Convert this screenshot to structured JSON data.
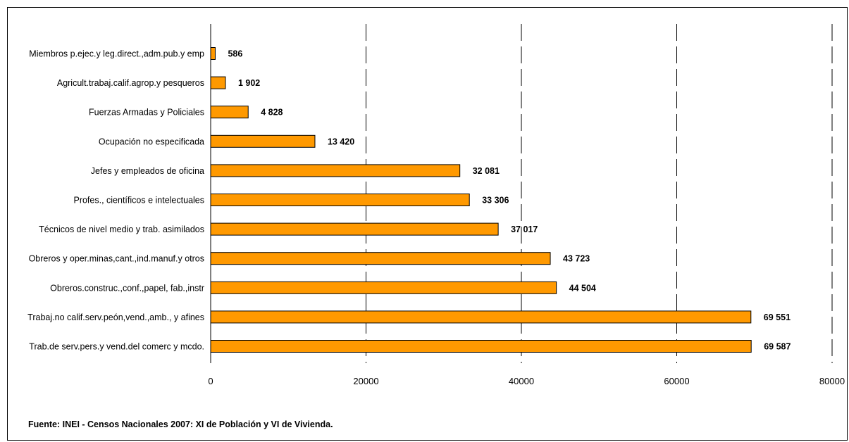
{
  "chart_data": {
    "type": "bar",
    "orientation": "horizontal",
    "title": "",
    "xlabel": "",
    "ylabel": "",
    "categories": [
      "Miembros p.ejec.y leg.direct.,adm.pub.y emp",
      "Agricult.trabaj.calif.agrop.y pesqueros",
      "Fuerzas Armadas y Policiales",
      "Ocupación no especificada",
      "Jefes y empleados de oficina",
      "Profes., científicos e intelectuales",
      "Técnicos de nivel medio y trab. asimilados",
      "Obreros y oper.minas,cant.,ind.manuf.y otros",
      "Obreros.construc.,conf.,papel, fab.,instr",
      "Trabaj.no calif.serv.peón,vend.,amb., y afines",
      "Trab.de serv.pers.y vend.del comerc y mcdo."
    ],
    "values": [
      586,
      1902,
      4828,
      13420,
      32081,
      33306,
      37017,
      43723,
      44504,
      69551,
      69587
    ],
    "data_labels": [
      "586",
      "1 902",
      "4 828",
      "13 420",
      "32 081",
      "33 306",
      "37 017",
      "43 723",
      "44 504",
      "69 551",
      "69 587"
    ],
    "xlim": [
      0,
      80000
    ],
    "x_ticks": [
      "0",
      "20000",
      "40000",
      "60000",
      "80000"
    ],
    "grid": "vertical dashed",
    "bar_color": "#FF9900",
    "legend": "none"
  },
  "footer": {
    "source": "Fuente: INEI - Censos Nacionales 2007: XI de Población y VI de Vivienda."
  }
}
